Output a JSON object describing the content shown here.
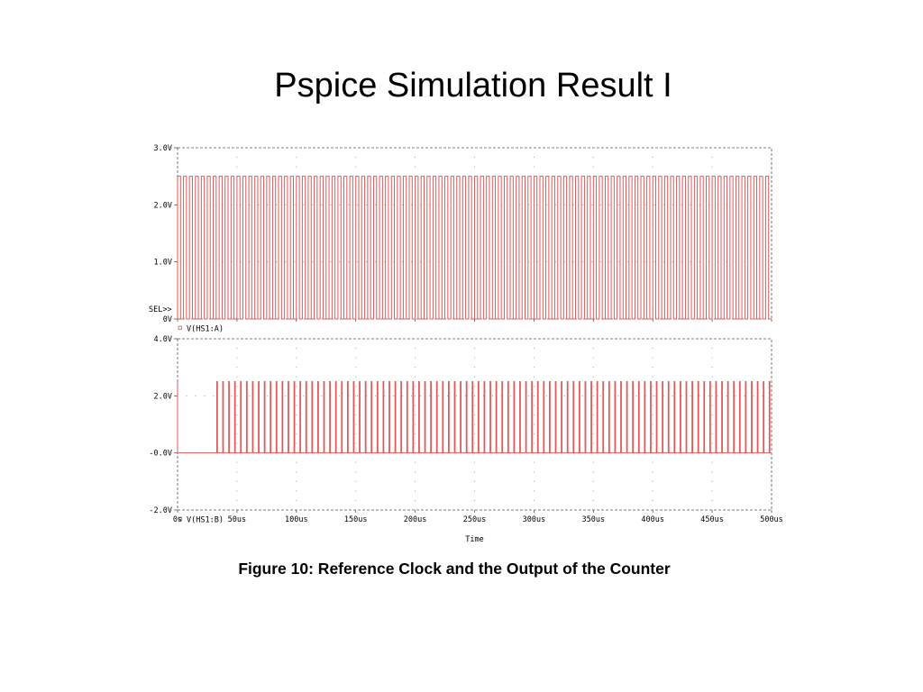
{
  "slide": {
    "title": "Pspice Simulation Result I",
    "caption": "Figure 10: Reference Clock and the Output of the Counter"
  },
  "colors": {
    "trace": "#e05a5a",
    "grid": "#9a9a9a",
    "axis": "#555555"
  },
  "chart_data": [
    {
      "type": "line",
      "xlabel": "Time",
      "xlim": [
        0,
        500
      ],
      "x_unit": "us",
      "ylim": [
        0,
        3.0
      ],
      "yticks": [
        0,
        1.0,
        2.0,
        3.0
      ],
      "ytick_labels": [
        "0V",
        "1.0V",
        "2.0V",
        "3.0V"
      ],
      "xticks": [
        0,
        50,
        100,
        150,
        200,
        250,
        300,
        350,
        400,
        450,
        500
      ],
      "xtick_labels": [
        "0s",
        "50us",
        "100us",
        "150us",
        "200us",
        "250us",
        "300us",
        "350us",
        "400us",
        "450us",
        "500us"
      ],
      "sel_marker": "SEL>>",
      "grid": true,
      "series": [
        {
          "name": "V(HS1:A)",
          "waveform": "square",
          "low": 0,
          "high": 2.5,
          "start": 0,
          "period": 5,
          "duty": 0.5
        }
      ]
    },
    {
      "type": "line",
      "xlabel": "Time",
      "xlim": [
        0,
        500
      ],
      "x_unit": "us",
      "ylim": [
        -2.0,
        4.0
      ],
      "yticks": [
        -2.0,
        0,
        2.0,
        4.0
      ],
      "ytick_labels": [
        "-2.0V",
        "-0.0V",
        "2.0V",
        "4.0V"
      ],
      "xticks": [
        0,
        50,
        100,
        150,
        200,
        250,
        300,
        350,
        400,
        450,
        500
      ],
      "xtick_labels": [
        "0s",
        "50us",
        "100us",
        "150us",
        "200us",
        "250us",
        "300us",
        "350us",
        "400us",
        "450us",
        "500us"
      ],
      "grid": true,
      "series": [
        {
          "name": "V(HS1:B)",
          "waveform": "pulse",
          "low": 0,
          "high": 2.5,
          "initial_spike_x": 0,
          "start": 33,
          "period": 5,
          "pulse_width": 0.6
        }
      ]
    }
  ]
}
